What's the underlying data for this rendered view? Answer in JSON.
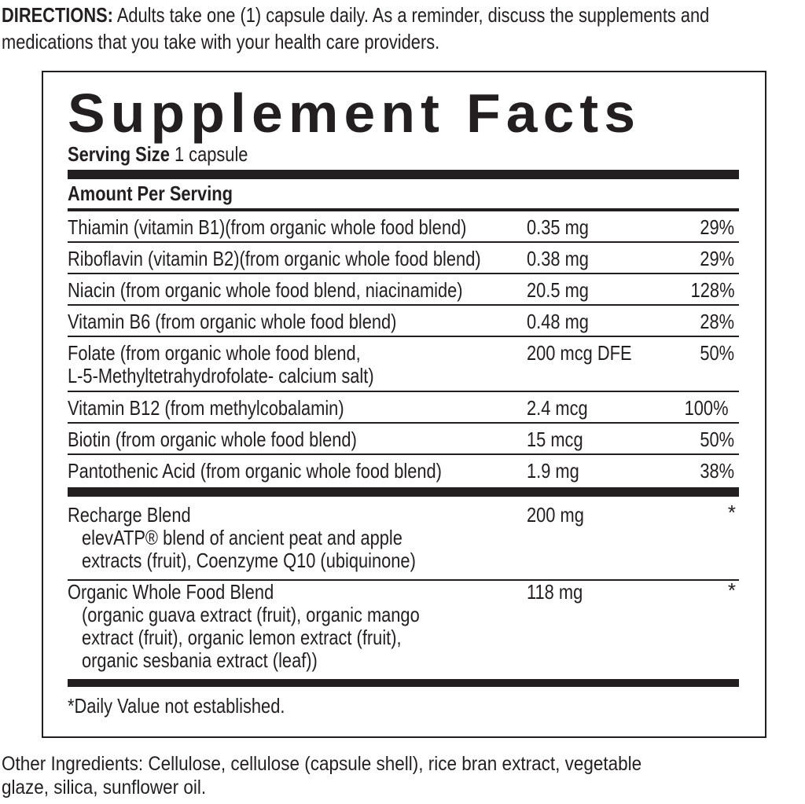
{
  "directions": {
    "label": "DIRECTIONS:",
    "line1": " Adults take one  (1) capsule daily. As a reminder, discuss the supplements and",
    "line2": "medications that you take with your health care providers."
  },
  "panel": {
    "title": "Supplement Facts",
    "serving_size_label": "Serving Size",
    "serving_size_value": " 1 capsule",
    "amount_per_serving": "Amount Per Serving",
    "nutrients": [
      {
        "name": "Thiamin (vitamin B1)(from organic whole food blend)",
        "amount": "0.35 mg",
        "dv": "29%"
      },
      {
        "name": "Riboflavin (vitamin B2)(from organic whole food blend)",
        "amount": "0.38 mg",
        "dv": "29%"
      },
      {
        "name": "Niacin (from organic whole food blend, niacinamide)",
        "amount": "20.5 mg",
        "dv": "128%"
      },
      {
        "name": "Vitamin B6 (from organic whole food blend)",
        "amount": "0.48 mg",
        "dv": "28%"
      },
      {
        "name": "Folate (from organic whole food blend,",
        "name2": "L-5-Methyltetrahydrofolate- calcium salt)",
        "amount": "200 mcg DFE",
        "dv": "50%"
      },
      {
        "name": "Vitamin B12 (from methylcobalamin)",
        "amount": "2.4 mcg",
        "dv": "100%"
      },
      {
        "name": "Biotin (from organic whole food blend)",
        "amount": "15 mcg",
        "dv": "50%"
      },
      {
        "name": "Pantothenic Acid (from organic whole food blend)",
        "amount": "1.9 mg",
        "dv": "38%"
      }
    ],
    "blends": [
      {
        "name": "Recharge Blend",
        "lines": [
          "elevATP® blend of ancient peat and apple",
          "extracts (fruit), Coenzyme Q10 (ubiquinone)"
        ],
        "amount": "200 mg",
        "dv": "*"
      },
      {
        "name": "Organic Whole Food Blend",
        "lines": [
          "(organic guava extract (fruit), organic mango",
          "extract (fruit), organic lemon extract (fruit),",
          "organic sesbania extract (leaf))"
        ],
        "amount": "118 mg",
        "dv": "*"
      }
    ],
    "footnote": "*Daily Value not established."
  },
  "other_ingredients": {
    "line1": "Other Ingredients: Cellulose, cellulose (capsule shell), rice bran extract, vegetable",
    "line2": "glaze, silica, sunflower oil."
  }
}
